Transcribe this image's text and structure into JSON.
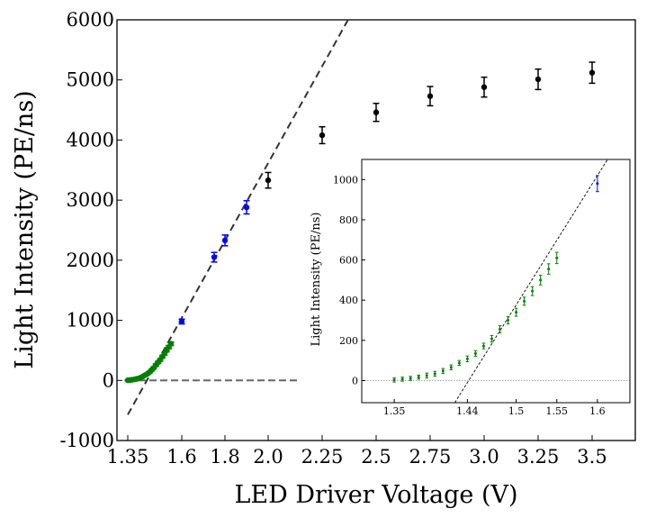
{
  "chart_data": [
    {
      "type": "scatter",
      "xlabel": "LED Driver Voltage (V)",
      "ylabel": "Light Intensity (PE/ns)",
      "xlim": [
        1.3,
        3.7
      ],
      "ylim": [
        -1000,
        6000
      ],
      "x_ticks": [
        1.35,
        1.6,
        1.8,
        2.0,
        2.25,
        2.5,
        2.75,
        3.0,
        3.25,
        3.5
      ],
      "x_tick_labels": [
        "1.35",
        "1.6",
        "1.8",
        "2.0",
        "2.25",
        "2.5",
        "2.75",
        "3.0",
        "3.25",
        "3.5"
      ],
      "y_ticks": [
        -1000,
        0,
        1000,
        2000,
        3000,
        4000,
        5000,
        6000
      ],
      "y_tick_labels": [
        "-1000",
        "0",
        "1000",
        "2000",
        "3000",
        "4000",
        "5000",
        "6000"
      ],
      "colors": {
        "green": "#008000",
        "blue": "#0000ff",
        "black": "#000000",
        "fit": "#333333",
        "zero": "#666666"
      },
      "series": [
        {
          "color": "green",
          "x": [
            1.35,
            1.36,
            1.37,
            1.38,
            1.39,
            1.4,
            1.41,
            1.42,
            1.43,
            1.44,
            1.45,
            1.46,
            1.47,
            1.48,
            1.49,
            1.5,
            1.51,
            1.52,
            1.53,
            1.54,
            1.55
          ],
          "y": [
            3,
            7,
            11,
            17,
            25,
            34,
            48,
            66,
            88,
            108,
            135,
            172,
            208,
            255,
            300,
            340,
            395,
            445,
            500,
            555,
            610
          ],
          "err": [
            10,
            10,
            10,
            10,
            12,
            12,
            12,
            12,
            12,
            14,
            14,
            14,
            16,
            18,
            18,
            20,
            20,
            22,
            24,
            26,
            28
          ]
        },
        {
          "color": "blue",
          "x": [
            1.6,
            1.75,
            1.8,
            1.9
          ],
          "y": [
            980,
            2050,
            2330,
            2880
          ],
          "err": [
            40,
            80,
            90,
            110
          ]
        },
        {
          "color": "black",
          "x": [
            2.0,
            2.25,
            2.5,
            2.75,
            3.0,
            3.25,
            3.5
          ],
          "y": [
            3330,
            4080,
            4460,
            4730,
            4880,
            5010,
            5120
          ],
          "err": [
            130,
            140,
            150,
            160,
            165,
            170,
            175
          ]
        }
      ],
      "fit_line": {
        "style": "dashed",
        "points": [
          [
            1.35,
            -570
          ],
          [
            2.37,
            6000
          ]
        ]
      },
      "zero_line": {
        "style": "dashed",
        "y": 0,
        "x_range": [
          1.35,
          2.15
        ]
      }
    },
    {
      "type": "scatter",
      "xlabel": "",
      "ylabel": "Light Intensity (PE/ns)",
      "xlim": [
        1.31,
        1.64
      ],
      "ylim": [
        -110,
        1100
      ],
      "x_ticks": [
        1.35,
        1.44,
        1.5,
        1.55,
        1.6
      ],
      "x_tick_labels": [
        "1.35",
        "1.44",
        "1.5",
        "1.55",
        "1.6"
      ],
      "y_ticks": [
        0,
        200,
        400,
        600,
        800,
        1000
      ],
      "y_tick_labels": [
        "0",
        "200",
        "400",
        "600",
        "800",
        "1000"
      ],
      "series": [
        {
          "color": "green",
          "x": [
            1.35,
            1.36,
            1.37,
            1.38,
            1.39,
            1.4,
            1.41,
            1.42,
            1.43,
            1.44,
            1.45,
            1.46,
            1.47,
            1.48,
            1.49,
            1.5,
            1.51,
            1.52,
            1.53,
            1.54,
            1.55
          ],
          "y": [
            3,
            7,
            11,
            17,
            25,
            34,
            48,
            66,
            88,
            108,
            135,
            172,
            208,
            255,
            300,
            340,
            395,
            445,
            500,
            555,
            610
          ],
          "err": [
            10,
            10,
            10,
            10,
            12,
            12,
            12,
            12,
            12,
            14,
            14,
            14,
            16,
            18,
            18,
            20,
            20,
            22,
            24,
            26,
            28
          ]
        },
        {
          "color": "blue",
          "x": [
            1.6
          ],
          "y": [
            980
          ],
          "err": [
            40
          ]
        }
      ],
      "fit_line": {
        "style": "dashed",
        "points": [
          [
            1.4245,
            -110
          ],
          [
            1.6125,
            1100
          ]
        ]
      },
      "zero_line": {
        "style": "dotted",
        "y": 0,
        "x_range": [
          1.31,
          1.64
        ]
      }
    }
  ]
}
